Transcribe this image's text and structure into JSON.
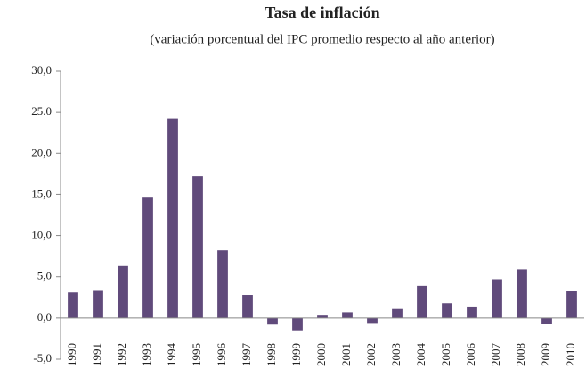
{
  "chart_data": {
    "type": "bar",
    "title": "Tasa de inflación",
    "subtitle": "(variación porcentual del IPC promedio respecto al año anterior)",
    "categories": [
      "1990",
      "1991",
      "1992",
      "1993",
      "1994",
      "1995",
      "1996",
      "1997",
      "1998",
      "1999",
      "2000",
      "2001",
      "2002",
      "2003",
      "2004",
      "2005",
      "2006",
      "2007",
      "2008",
      "2009",
      "2010"
    ],
    "values": [
      3.1,
      3.4,
      6.4,
      14.7,
      24.3,
      17.2,
      8.2,
      2.8,
      -0.8,
      -1.5,
      0.4,
      0.7,
      -0.6,
      1.1,
      3.9,
      1.8,
      1.4,
      4.7,
      5.9,
      -0.7,
      3.3
    ],
    "color": "#604a7b",
    "ylim": [
      -5,
      30
    ],
    "yticks": [
      {
        "value": -5,
        "label": "-5,0"
      },
      {
        "value": 0,
        "label": "0,0"
      },
      {
        "value": 5,
        "label": "5,0"
      },
      {
        "value": 10,
        "label": "10,0"
      },
      {
        "value": 15,
        "label": "15,0"
      },
      {
        "value": 20,
        "label": "20,0"
      },
      {
        "value": 25,
        "label": "25.0"
      },
      {
        "value": 30,
        "label": "30,0"
      }
    ],
    "grid": false
  }
}
